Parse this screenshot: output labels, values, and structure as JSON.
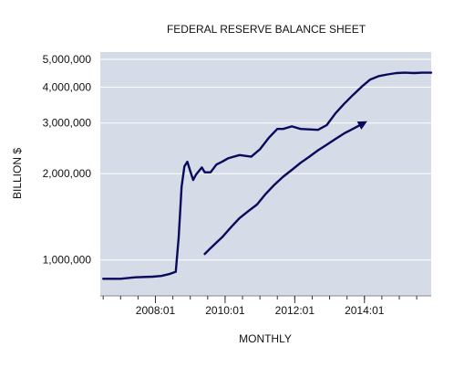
{
  "chart_data": {
    "type": "line",
    "title": "FEDERAL RESERVE BALANCE SHEET",
    "xlabel": "MONTHLY",
    "ylabel": "BILLION $",
    "y_scale": "log",
    "ylim": [
      750000,
      5300000
    ],
    "xlim": [
      "2006-06",
      "2015-12"
    ],
    "x_ticks": [
      "2008:01",
      "2010:01",
      "2012:01",
      "2014:01"
    ],
    "y_ticks": [
      "1,000,000",
      "2,000,000",
      "3,000,000",
      "4,000,000",
      "5,000,000"
    ],
    "y_tick_values": [
      1000000,
      2000000,
      3000000,
      4000000,
      5000000
    ],
    "grid": "horizontal",
    "legend": "none",
    "background_color": "#d5dce7",
    "line_color": "#0a0a5c",
    "series": [
      {
        "x": [
          "2006-07",
          "2007-01",
          "2007-06",
          "2007-12",
          "2008-03",
          "2008-06",
          "2008-08",
          "2008-09",
          "2008-10",
          "2008-11",
          "2008-12",
          "2009-01",
          "2009-02",
          "2009-03",
          "2009-05",
          "2009-06",
          "2009-08",
          "2009-10",
          "2009-12",
          "2010-02",
          "2010-06",
          "2010-10",
          "2011-01",
          "2011-04",
          "2011-07",
          "2011-09",
          "2011-12",
          "2012-03",
          "2012-06",
          "2012-09",
          "2012-12",
          "2013-03",
          "2013-06",
          "2013-09",
          "2013-12",
          "2014-03",
          "2014-06",
          "2014-09",
          "2014-12",
          "2015-03",
          "2015-06",
          "2015-09",
          "2015-12"
        ],
        "values": [
          860000,
          860000,
          870000,
          875000,
          880000,
          895000,
          910000,
          1200000,
          1800000,
          2120000,
          2200000,
          2040000,
          1900000,
          1985000,
          2100000,
          2020000,
          2020000,
          2150000,
          2200000,
          2260000,
          2320000,
          2290000,
          2430000,
          2660000,
          2860000,
          2860000,
          2920000,
          2860000,
          2850000,
          2840000,
          2950000,
          3240000,
          3500000,
          3750000,
          4010000,
          4250000,
          4370000,
          4430000,
          4480000,
          4490000,
          4480000,
          4490000,
          4490000
        ]
      },
      {
        "x": [
          "2009-06",
          "2009-08",
          "2009-10",
          "2009-12",
          "2010-03",
          "2010-06",
          "2010-09",
          "2010-12",
          "2011-03",
          "2011-06",
          "2011-09",
          "2011-12",
          "2012-03",
          "2012-06",
          "2012-09",
          "2012-12",
          "2013-03",
          "2013-06",
          "2013-09",
          "2013-12"
        ],
        "values": [
          1050000,
          1100000,
          1150000,
          1200000,
          1300000,
          1400000,
          1480000,
          1560000,
          1700000,
          1830000,
          1950000,
          2060000,
          2180000,
          2290000,
          2410000,
          2520000,
          2640000,
          2760000,
          2860000,
          2970000
        ]
      }
    ]
  }
}
